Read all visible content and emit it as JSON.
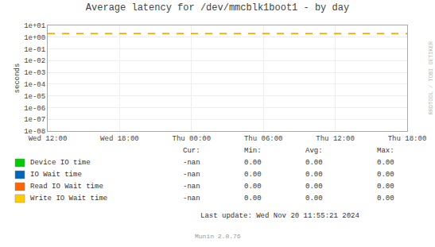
{
  "chart_data": {
    "type": "line",
    "title": "Average latency for /dev/mmcblk1boot1 - by day",
    "ylabel": "seconds",
    "categories": [
      "Wed 12:00",
      "Wed 18:00",
      "Thu 00:00",
      "Thu 06:00",
      "Thu 12:00",
      "Thu 18:00"
    ],
    "series": [
      {
        "name": "Device IO time",
        "color": "#00cc00",
        "values": [
          null,
          null,
          null,
          null,
          null,
          null
        ],
        "stats": [
          "-nan",
          "0.00",
          "0.00",
          "0.00"
        ]
      },
      {
        "name": "IO Wait time",
        "color": "#0066bb",
        "values": [
          null,
          null,
          null,
          null,
          null,
          null
        ],
        "stats": [
          "-nan",
          "0.00",
          "0.00",
          "0.00"
        ]
      },
      {
        "name": "Read IO Wait time",
        "color": "#ff6600",
        "values": [
          null,
          null,
          null,
          null,
          null,
          null
        ],
        "stats": [
          "-nan",
          "0.00",
          "0.00",
          "0.00"
        ]
      },
      {
        "name": "Write IO Wait time",
        "color": "#ffcc00",
        "values": [
          null,
          null,
          null,
          null,
          null,
          null
        ],
        "stats": [
          "-nan",
          "0.00",
          "0.00",
          "0.00"
        ]
      }
    ],
    "stats_headers": [
      "Cur:",
      "Min:",
      "Avg:",
      "Max:"
    ],
    "reference_line": {
      "value": 2.0,
      "color": "#ff9900",
      "line_style": "dashed"
    },
    "log": "y",
    "ylim": [
      1e-08,
      10
    ],
    "yticks": [
      {
        "value": 1e-08,
        "label": "1e-08"
      },
      {
        "value": 1e-07,
        "label": "1e-07"
      },
      {
        "value": 1e-06,
        "label": "1e-06"
      },
      {
        "value": 1e-05,
        "label": "1e-05"
      },
      {
        "value": 0.0001,
        "label": "1e-04"
      },
      {
        "value": 0.001,
        "label": "1e-03"
      },
      {
        "value": 0.01,
        "label": "1e-02"
      },
      {
        "value": 0.1,
        "label": "1e-01"
      },
      {
        "value": 1,
        "label": "1e+00"
      },
      {
        "value": 10,
        "label": "1e+01"
      }
    ],
    "grid": true,
    "footnote": "Last update: Wed Nov 20 11:55:21 2024",
    "credit": "Munin 2.0.76",
    "watermark": "RRDTOOL / TOBI OETIKER"
  }
}
